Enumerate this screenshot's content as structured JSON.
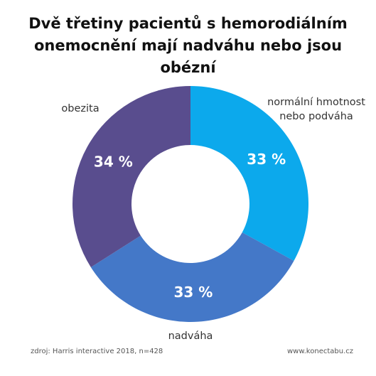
{
  "chart_data": {
    "type": "pie",
    "donut": true,
    "title": "Dvě třetiny pacientů s hemorodiálním onemocnění mají nadváhu nebo jsou obézní",
    "categories": [
      "normální hmotnost nebo podváha",
      "nadváha",
      "obezita"
    ],
    "values": [
      33,
      33,
      34
    ],
    "value_labels": [
      "33 %",
      "33 %",
      "34 %"
    ],
    "colors": [
      "#0ca9ec",
      "#4478c8",
      "#594d8e"
    ],
    "category_lines": [
      [
        "normální hmotnost",
        "nebo podváha"
      ],
      [
        "nadváha"
      ],
      [
        "obezita"
      ]
    ]
  },
  "footer": {
    "source": "zdroj: Harris interactive 2018, n=428",
    "site": "www.konectabu.cz"
  }
}
